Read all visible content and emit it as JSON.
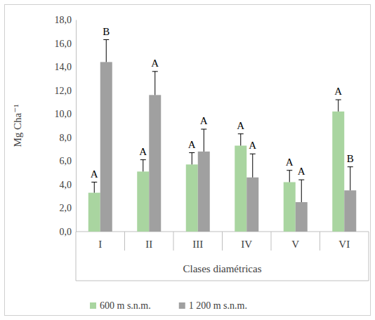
{
  "chart_data": {
    "type": "bar",
    "y_label": "Mg Cha⁻¹",
    "x_label": "Clases diamétricas",
    "categories": [
      "I",
      "II",
      "III",
      "IV",
      "V",
      "VI"
    ],
    "series": [
      {
        "name": "600 m s.n.m.",
        "color": "#a9d5a0",
        "values": [
          3.3,
          5.1,
          5.7,
          7.3,
          4.2,
          10.2
        ],
        "errors": [
          0.9,
          1.0,
          1.0,
          1.0,
          1.0,
          1.0
        ],
        "significance": [
          "A",
          "A",
          "A",
          "A",
          "A",
          "A"
        ]
      },
      {
        "name": "1 200 m s.n.m.",
        "color": "#a0a0a0",
        "values": [
          14.4,
          11.6,
          6.8,
          4.6,
          2.5,
          3.5
        ],
        "errors": [
          1.9,
          2.0,
          1.9,
          2.0,
          1.9,
          2.0
        ],
        "significance": [
          "B",
          "A",
          "A",
          "A",
          "A",
          "B"
        ]
      }
    ],
    "ylim": [
      0,
      18
    ],
    "yticks": [
      {
        "value": 0,
        "label": "0,0"
      },
      {
        "value": 2,
        "label": "2,0"
      },
      {
        "value": 4,
        "label": "4,0"
      },
      {
        "value": 6,
        "label": "6,0"
      },
      {
        "value": 8,
        "label": "8,0"
      },
      {
        "value": 10,
        "label": "10,0"
      },
      {
        "value": 12,
        "label": "12,0"
      },
      {
        "value": 14,
        "label": "14,0"
      },
      {
        "value": 16,
        "label": "16,0"
      },
      {
        "value": 18,
        "label": "18,0"
      }
    ],
    "grid": false,
    "legend": "bottom"
  }
}
